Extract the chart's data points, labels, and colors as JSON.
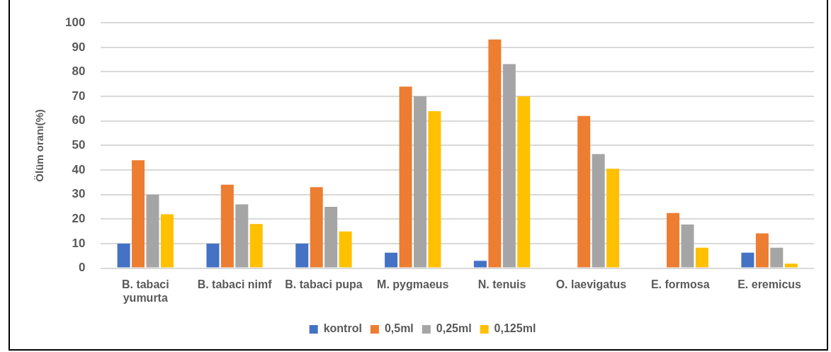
{
  "chart_data": {
    "type": "bar",
    "ylabel": "Ölüm oranı(%)",
    "categories": [
      "B. tabaci yumurta",
      "B. tabaci nimf",
      "B. tabaci pupa",
      "M. pygmaeus",
      "N. tenuis",
      "O. laevigatus",
      "E. formosa",
      "E. eremicus"
    ],
    "series": [
      {
        "name": "kontrol",
        "color": "#4472c4",
        "values": [
          10,
          10,
          10,
          6.3,
          3,
          0,
          0,
          6.3
        ]
      },
      {
        "name": "0,5ml",
        "color": "#ed7d31",
        "values": [
          44,
          34,
          33,
          74,
          93.2,
          62,
          22.5,
          14.2
        ]
      },
      {
        "name": "0,25ml",
        "color": "#a5a5a5",
        "values": [
          30,
          26,
          25,
          70,
          83.2,
          46.5,
          17.8,
          8.3
        ]
      },
      {
        "name": "0,125ml",
        "color": "#ffc000",
        "values": [
          22,
          18,
          15,
          64,
          70,
          40.5,
          8.3,
          1.8
        ]
      }
    ],
    "ylim": [
      0,
      100
    ],
    "yticks": [
      0,
      10,
      20,
      30,
      40,
      50,
      60,
      70,
      80,
      90,
      100
    ],
    "grid": "y",
    "legend": "bottom"
  }
}
